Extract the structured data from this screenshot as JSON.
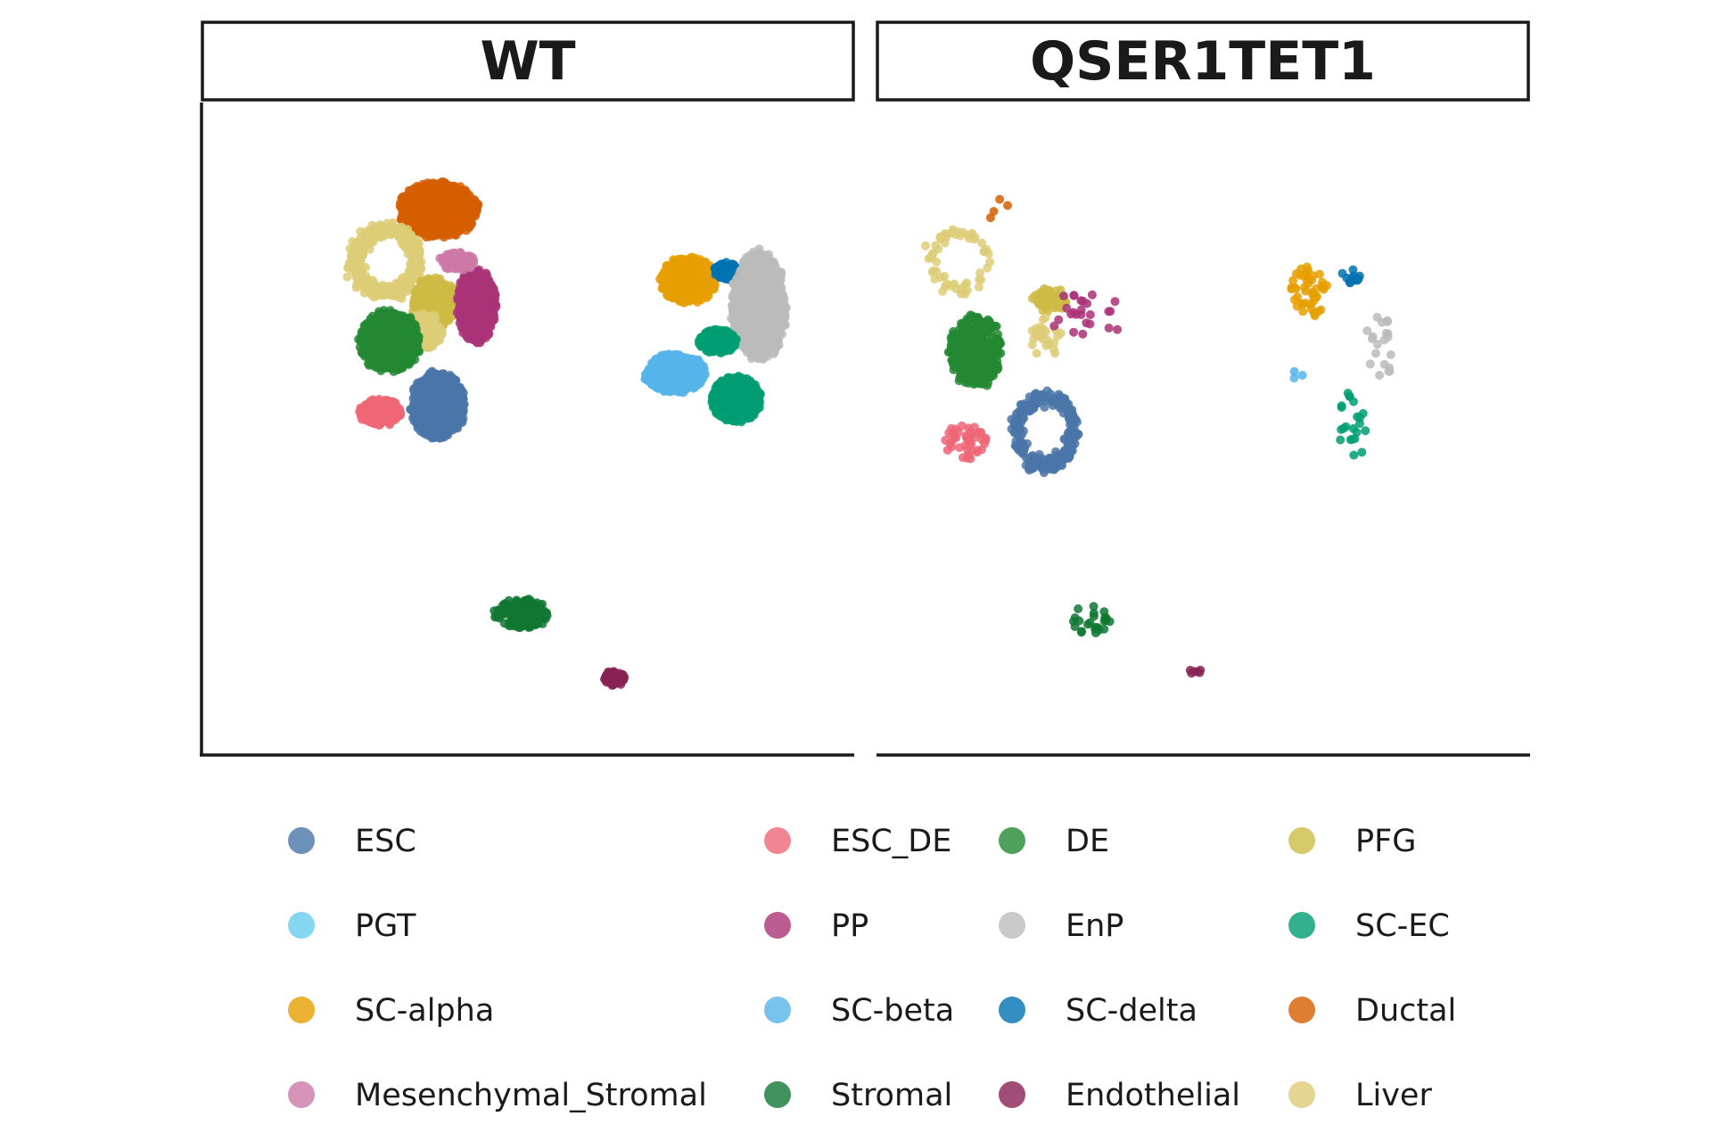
{
  "chart_data": {
    "type": "scatter",
    "facets": [
      "WT",
      "QSER1TET1"
    ],
    "axes": "none",
    "legend_placement": "bottom",
    "legend_columns": 4,
    "series": [
      {
        "name": "ESC",
        "color": "#4A76A8"
      },
      {
        "name": "ESC_DE",
        "color": "#EE6677"
      },
      {
        "name": "DE",
        "color": "#228833"
      },
      {
        "name": "PFG",
        "color": "#CCBB44"
      },
      {
        "name": "PGT",
        "color": "#66CCEE"
      },
      {
        "name": "PP",
        "color": "#AA3377"
      },
      {
        "name": "EnP",
        "color": "#BBBBBB"
      },
      {
        "name": "SC-EC",
        "color": "#009E73"
      },
      {
        "name": "SC-alpha",
        "color": "#E69F00"
      },
      {
        "name": "SC-beta",
        "color": "#56B4E9"
      },
      {
        "name": "SC-delta",
        "color": "#0072B2"
      },
      {
        "name": "Ductal",
        "color": "#D55E00"
      },
      {
        "name": "Mesenchymal_Stromal",
        "color": "#CC79A7"
      },
      {
        "name": "Stromal",
        "color": "#117733"
      },
      {
        "name": "Endothelial",
        "color": "#882255"
      },
      {
        "name": "Liver",
        "color": "#DDCC77"
      }
    ],
    "clusters": {
      "WT": [
        {
          "series": "Ductal",
          "cx": 3.6,
          "cy": 8.4,
          "rx": 0.65,
          "ry": 0.45,
          "n": 900
        },
        {
          "series": "Liver",
          "cx": 2.8,
          "cy": 7.6,
          "rx": 0.55,
          "ry": 0.55,
          "n": 450,
          "ring": true
        },
        {
          "series": "PFG",
          "cx": 3.55,
          "cy": 6.95,
          "rx": 0.38,
          "ry": 0.42,
          "n": 380
        },
        {
          "series": "Liver",
          "cx": 3.4,
          "cy": 6.5,
          "rx": 0.3,
          "ry": 0.3,
          "n": 140
        },
        {
          "series": "PP",
          "cx": 4.2,
          "cy": 6.9,
          "rx": 0.32,
          "ry": 0.6,
          "n": 600
        },
        {
          "series": "DE",
          "cx": 2.85,
          "cy": 6.35,
          "rx": 0.5,
          "ry": 0.5,
          "n": 800
        },
        {
          "series": "ESC_DE",
          "cx": 2.7,
          "cy": 5.25,
          "rx": 0.35,
          "ry": 0.22,
          "n": 350
        },
        {
          "series": "ESC",
          "cx": 3.6,
          "cy": 5.35,
          "rx": 0.45,
          "ry": 0.55,
          "n": 800
        },
        {
          "series": "SC-alpha",
          "cx": 7.5,
          "cy": 7.3,
          "rx": 0.45,
          "ry": 0.38,
          "n": 550
        },
        {
          "series": "SC-delta",
          "cx": 8.1,
          "cy": 7.45,
          "rx": 0.2,
          "ry": 0.15,
          "n": 140
        },
        {
          "series": "EnP",
          "cx": 8.6,
          "cy": 6.9,
          "rx": 0.45,
          "ry": 0.9,
          "n": 1000
        },
        {
          "series": "SC-EC",
          "cx": 7.95,
          "cy": 6.35,
          "rx": 0.32,
          "ry": 0.2,
          "n": 250
        },
        {
          "series": "SC-beta",
          "cx": 7.3,
          "cy": 5.85,
          "rx": 0.5,
          "ry": 0.32,
          "n": 700
        },
        {
          "series": "SC-EC",
          "cx": 8.25,
          "cy": 5.45,
          "rx": 0.4,
          "ry": 0.38,
          "n": 750
        },
        {
          "series": "Mesenchymal_Stromal",
          "cx": 3.9,
          "cy": 7.6,
          "rx": 0.3,
          "ry": 0.15,
          "n": 80
        },
        {
          "series": "Stromal",
          "cx": 4.9,
          "cy": 2.1,
          "rx": 0.45,
          "ry": 0.25,
          "n": 160
        },
        {
          "series": "Endothelial",
          "cx": 6.35,
          "cy": 1.1,
          "rx": 0.18,
          "ry": 0.12,
          "n": 70
        }
      ],
      "QSER1TET1": [
        {
          "series": "Liver",
          "cx": 1.2,
          "cy": 7.6,
          "rx": 0.5,
          "ry": 0.5,
          "n": 55,
          "ring": true
        },
        {
          "series": "PFG",
          "cx": 2.6,
          "cy": 7.0,
          "rx": 0.3,
          "ry": 0.2,
          "n": 55
        },
        {
          "series": "Liver",
          "cx": 2.55,
          "cy": 6.4,
          "rx": 0.25,
          "ry": 0.35,
          "n": 25
        },
        {
          "series": "PP",
          "cx": 3.2,
          "cy": 6.7,
          "rx": 0.6,
          "ry": 0.5,
          "n": 25
        },
        {
          "series": "DE",
          "cx": 1.45,
          "cy": 6.2,
          "rx": 0.45,
          "ry": 0.6,
          "n": 320
        },
        {
          "series": "ESC_DE",
          "cx": 1.3,
          "cy": 4.8,
          "rx": 0.35,
          "ry": 0.3,
          "n": 45
        },
        {
          "series": "ESC",
          "cx": 2.55,
          "cy": 4.95,
          "rx": 0.5,
          "ry": 0.6,
          "n": 260,
          "ring": true
        },
        {
          "series": "SC-alpha",
          "cx": 6.65,
          "cy": 7.1,
          "rx": 0.3,
          "ry": 0.45,
          "n": 45
        },
        {
          "series": "SC-delta",
          "cx": 7.35,
          "cy": 7.35,
          "rx": 0.2,
          "ry": 0.15,
          "n": 12
        },
        {
          "series": "EnP",
          "cx": 7.75,
          "cy": 6.2,
          "rx": 0.25,
          "ry": 0.6,
          "n": 20
        },
        {
          "series": "SC-EC",
          "cx": 7.3,
          "cy": 5.0,
          "rx": 0.25,
          "ry": 0.6,
          "n": 22
        },
        {
          "series": "SC-beta",
          "cx": 6.3,
          "cy": 5.85,
          "rx": 0.35,
          "ry": 0.1,
          "n": 3
        },
        {
          "series": "Ductal",
          "cx": 1.9,
          "cy": 8.3,
          "rx": 0.3,
          "ry": 0.3,
          "n": 4
        },
        {
          "series": "Stromal",
          "cx": 3.25,
          "cy": 2.0,
          "rx": 0.35,
          "ry": 0.25,
          "n": 24
        },
        {
          "series": "Endothelial",
          "cx": 4.9,
          "cy": 1.2,
          "rx": 0.12,
          "ry": 0.08,
          "n": 6
        }
      ]
    }
  }
}
